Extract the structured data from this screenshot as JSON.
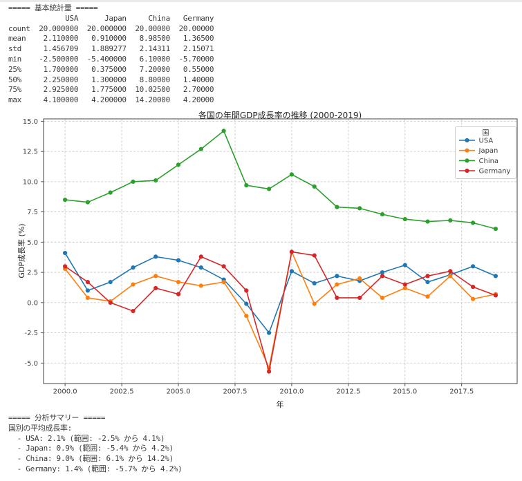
{
  "window": {
    "top_strip_color": "#e9e9e9",
    "background": "#ffffff"
  },
  "stats": {
    "heading": "===== 基本統計量 =====",
    "columns": [
      "USA",
      "Japan",
      "China",
      "Germany"
    ],
    "rows": [
      {
        "label": "count",
        "values": [
          "20.000000",
          "20.000000",
          "20.00000",
          "20.00000"
        ]
      },
      {
        "label": "mean",
        "values": [
          "2.110000",
          "0.910000",
          "8.98500",
          "1.36500"
        ]
      },
      {
        "label": "std",
        "values": [
          "1.456709",
          "1.889277",
          "2.14311",
          "2.15071"
        ]
      },
      {
        "label": "min",
        "values": [
          "-2.500000",
          "-5.400000",
          "6.10000",
          "-5.70000"
        ]
      },
      {
        "label": "25%",
        "values": [
          "1.700000",
          "0.375000",
          "7.20000",
          "0.55000"
        ]
      },
      {
        "label": "50%",
        "values": [
          "2.250000",
          "1.300000",
          "8.80000",
          "1.40000"
        ]
      },
      {
        "label": "75%",
        "values": [
          "2.925000",
          "1.775000",
          "10.02500",
          "2.70000"
        ]
      },
      {
        "label": "max",
        "values": [
          "4.100000",
          "4.200000",
          "14.20000",
          "4.20000"
        ]
      }
    ]
  },
  "chart_data": {
    "type": "line",
    "title": "各国の年間GDP成長率の推移 (2000-2019)",
    "xlabel": "年",
    "ylabel": "GDP成長率 (%)",
    "legend_title": "国",
    "legend_position": "upper right",
    "grid": true,
    "grid_style": "dashed",
    "marker": "o",
    "x": [
      2000,
      2001,
      2002,
      2003,
      2004,
      2005,
      2006,
      2007,
      2008,
      2009,
      2010,
      2011,
      2012,
      2013,
      2014,
      2015,
      2016,
      2017,
      2018,
      2019
    ],
    "series": [
      {
        "name": "USA",
        "color": "#1f77b4",
        "values": [
          4.1,
          1.0,
          1.7,
          2.9,
          3.8,
          3.5,
          2.9,
          1.9,
          -0.1,
          -2.5,
          2.6,
          1.6,
          2.2,
          1.8,
          2.5,
          3.1,
          1.7,
          2.3,
          3.0,
          2.2
        ]
      },
      {
        "name": "Japan",
        "color": "#ff7f0e",
        "values": [
          2.8,
          0.4,
          0.1,
          1.5,
          2.2,
          1.7,
          1.4,
          1.7,
          -1.1,
          -5.4,
          4.2,
          -0.1,
          1.5,
          2.0,
          0.4,
          1.2,
          0.5,
          2.2,
          0.3,
          0.7
        ]
      },
      {
        "name": "China",
        "color": "#2ca02c",
        "values": [
          8.5,
          8.3,
          9.1,
          10.0,
          10.1,
          11.4,
          12.7,
          14.2,
          9.7,
          9.4,
          10.6,
          9.6,
          7.9,
          7.8,
          7.3,
          6.9,
          6.7,
          6.8,
          6.6,
          6.1
        ]
      },
      {
        "name": "Germany",
        "color": "#d62728",
        "values": [
          3.0,
          1.7,
          0.0,
          -0.7,
          1.2,
          0.7,
          3.8,
          3.0,
          1.0,
          -5.7,
          4.2,
          3.9,
          0.4,
          0.4,
          2.2,
          1.5,
          2.2,
          2.6,
          1.3,
          0.6
        ]
      }
    ],
    "xticks": [
      2000.0,
      2002.5,
      2005.0,
      2007.5,
      2010.0,
      2012.5,
      2015.0,
      2017.5
    ],
    "yticks": [
      15.0,
      12.5,
      10.0,
      7.5,
      5.0,
      2.5,
      0.0,
      -2.5,
      -5.0
    ],
    "xlim": [
      1999.05,
      2019.95
    ],
    "ylim": [
      -6.695,
      15.195
    ]
  },
  "summary": {
    "heading": "===== 分析サマリー =====",
    "intro": "国別の平均成長率:",
    "lines": [
      "  - USA: 2.1% (範囲: -2.5% から 4.1%)",
      "  - Japan: 0.9% (範囲: -5.4% から 4.2%)",
      "  - China: 9.0% (範囲: 6.1% から 14.2%)",
      "  - Germany: 1.4% (範囲: -5.7% から 4.2%)"
    ]
  }
}
